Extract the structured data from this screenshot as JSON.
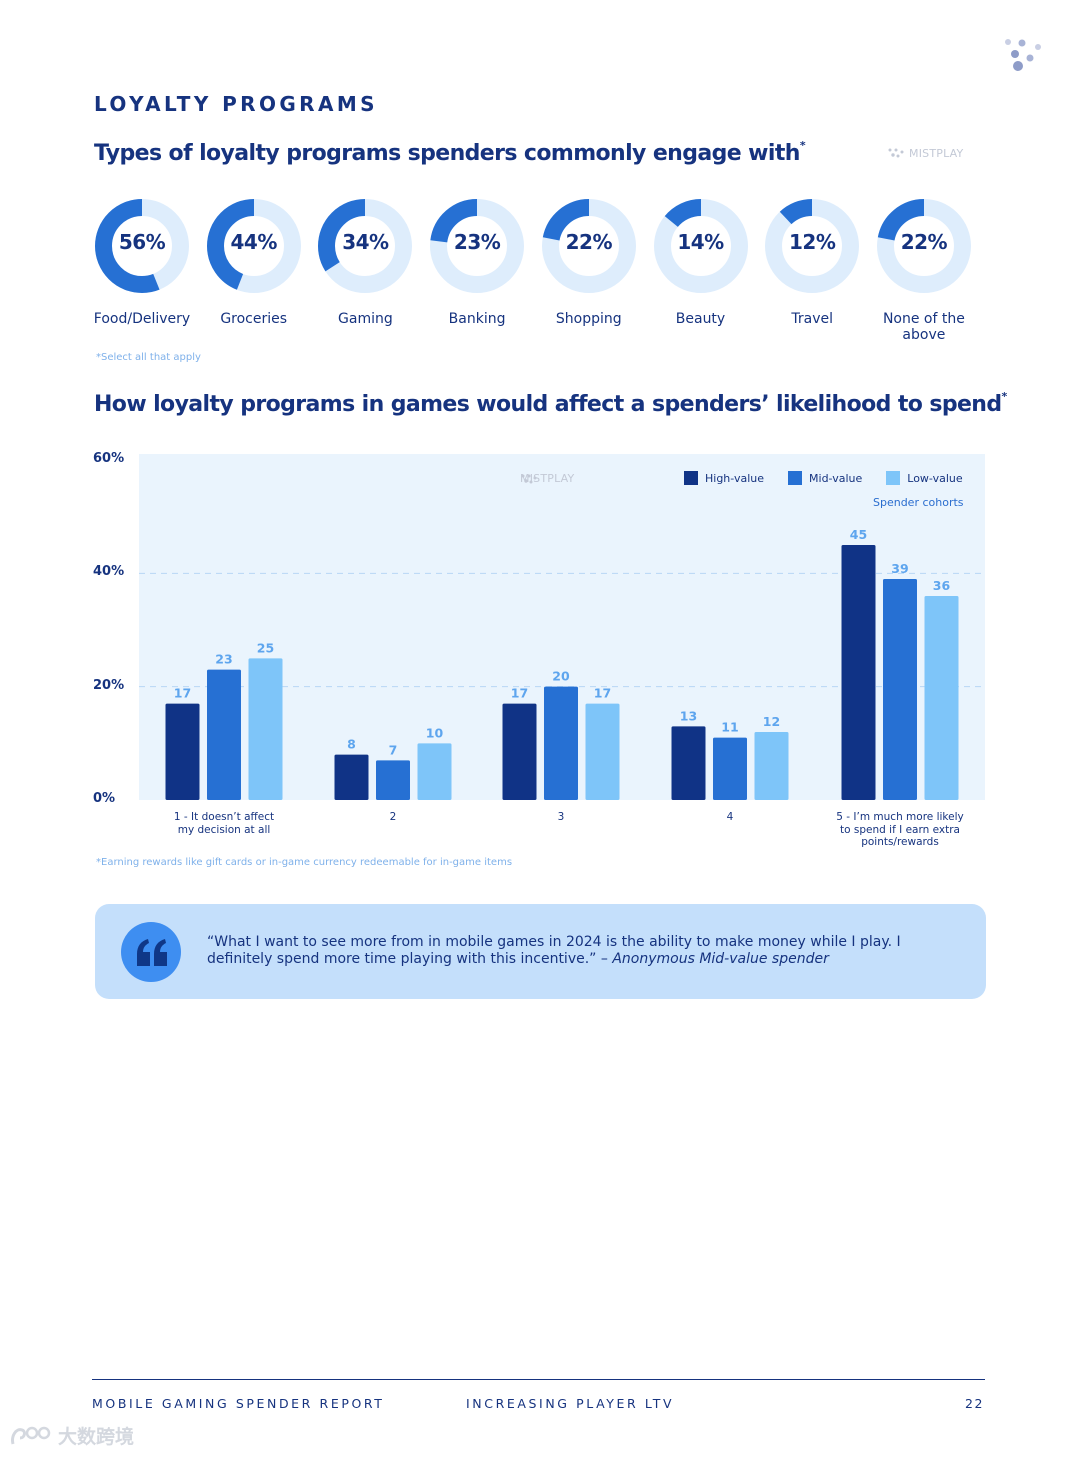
{
  "section_title": "LOYALTY PROGRAMS",
  "chart1": {
    "title": "Types of loyalty programs spenders commonly engage with",
    "title_mark": "*",
    "brand": "MISTPLAY",
    "note": "*Select all that apply"
  },
  "chart2": {
    "title": "How loyalty programs in games would affect a spenders’ likelihood to spend",
    "title_mark": "*",
    "brand": "MISTPLAY",
    "note": "*Earning rewards like gift cards or in-game currency redeemable for in-game items",
    "legend_title": "Spender cohorts"
  },
  "chart_data": [
    {
      "type": "pie",
      "subtype": "donut-row",
      "title": "Types of loyalty programs spenders commonly engage with*",
      "categories": [
        "Food/Delivery",
        "Groceries",
        "Gaming",
        "Banking",
        "Shopping",
        "Beauty",
        "Travel",
        "None of the above"
      ],
      "values": [
        56,
        44,
        34,
        23,
        22,
        14,
        12,
        22
      ],
      "value_labels": [
        "56%",
        "44%",
        "34%",
        "23%",
        "22%",
        "14%",
        "12%",
        "22%"
      ],
      "unit": "%"
    },
    {
      "type": "bar",
      "title": "How loyalty programs in games would affect a spenders’ likelihood to spend*",
      "categories": [
        "1 - It doesn’t affect my decision at all",
        "2",
        "3",
        "4",
        "5 - I’m much more likely to spend if I earn extra points/rewards"
      ],
      "series": [
        {
          "name": "High-value",
          "color": "#103386",
          "values": [
            17,
            8,
            17,
            13,
            45
          ]
        },
        {
          "name": "Mid-value",
          "color": "#2670d3",
          "values": [
            23,
            7,
            20,
            11,
            39
          ]
        },
        {
          "name": "Low-value",
          "color": "#7ec5f9",
          "values": [
            25,
            10,
            17,
            12,
            36
          ]
        }
      ],
      "y_ticks": [
        "0%",
        "20%",
        "40%",
        "60%"
      ],
      "ylim": [
        0,
        60
      ],
      "legend_title": "Spender cohorts",
      "grid": true
    }
  ],
  "quote": {
    "text": "“What I want to see more from in mobile games in 2024 is the ability to make money while I play. I definitely spend more time playing with this incentive.” – ",
    "attribution": "Anonymous Mid-value spender"
  },
  "footer": {
    "report": "MOBILE GAMING SPENDER REPORT",
    "section": "INCREASING PLAYER LTV",
    "page": "22"
  },
  "watermark": "大数跨境",
  "colors": {
    "navy": "#16337f",
    "donut_fill": "#2670d3",
    "donut_track": "#deedfc",
    "chart_bg": "#eaf4fd",
    "quote_bg": "#c4dffb",
    "quote_icon": "#3e8ef1"
  }
}
